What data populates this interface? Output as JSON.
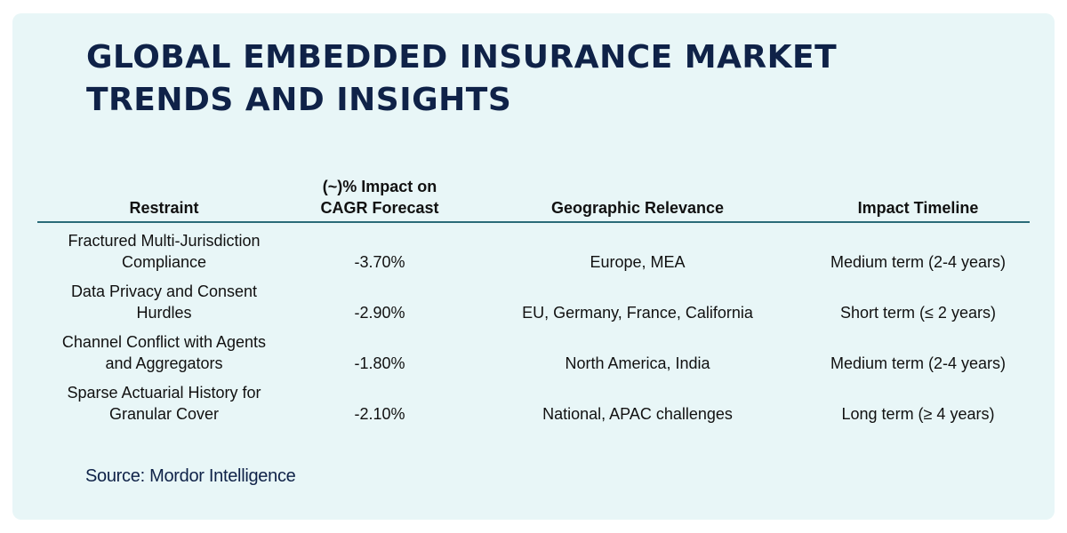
{
  "page": {
    "title_line1": "GLOBAL EMBEDDED INSURANCE MARKET",
    "title_line2": "TRENDS AND INSIGHTS"
  },
  "table": {
    "headers": {
      "restraint": "Restraint",
      "impact_line1": "(~)% Impact on",
      "impact_line2": "CAGR Forecast",
      "geography": "Geographic Relevance",
      "timeline": "Impact Timeline"
    },
    "rows": [
      {
        "restraint_line1": "Fractured Multi-Jurisdiction",
        "restraint_line2": "Compliance",
        "impact": "-3.70%",
        "geography": "Europe, MEA",
        "timeline": "Medium term (2-4 years)"
      },
      {
        "restraint_line1": "Data Privacy and Consent",
        "restraint_line2": "Hurdles",
        "impact": "-2.90%",
        "geography": "EU, Germany, France, California",
        "timeline": "Short term (≤ 2 years)"
      },
      {
        "restraint_line1": "Channel Conflict with Agents",
        "restraint_line2": "and Aggregators",
        "impact": "-1.80%",
        "geography": "North America, India",
        "timeline": "Medium term (2-4 years)"
      },
      {
        "restraint_line1": "Sparse Actuarial History for",
        "restraint_line2": "Granular Cover",
        "impact": "-2.10%",
        "geography": "National, APAC challenges",
        "timeline": "Long term (≥ 4 years)"
      }
    ]
  },
  "footer": {
    "source": "Source: Mordor Intelligence"
  },
  "colors": {
    "card_background": "#e8f6f7",
    "title": "#0f2248",
    "header_rule": "#2a6b78"
  }
}
